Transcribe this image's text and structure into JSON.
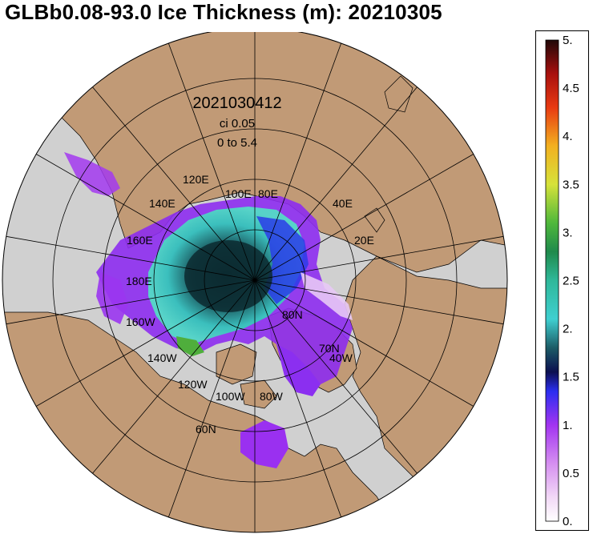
{
  "title": "GLBb0.08-93.0 Ice Thickness (m): 20210305",
  "annotations": {
    "run_id": "2021030412",
    "contour_interval": "ci 0.05",
    "range": "0 to 5.4"
  },
  "longitude_labels": [
    "120E",
    "140E",
    "100E",
    "80E",
    "40E",
    "160E",
    "20E",
    "180E",
    "80N",
    "160W",
    "70N",
    "40W",
    "140W",
    "120W",
    "100W",
    "80W",
    "60N"
  ],
  "colorbar": {
    "tick_labels": [
      "5.",
      "4.5",
      "4.",
      "3.5",
      "3.",
      "2.5",
      "2.",
      "1.5",
      "1.",
      "0.5",
      "0."
    ],
    "min": 0,
    "max": 5
  },
  "colors": {
    "land": "#c19a76",
    "ocean": "#d0d0d0",
    "ice_low": "#a32ff0",
    "ice_mid": "#38c8c8",
    "ice_high": "#0a2a30"
  }
}
